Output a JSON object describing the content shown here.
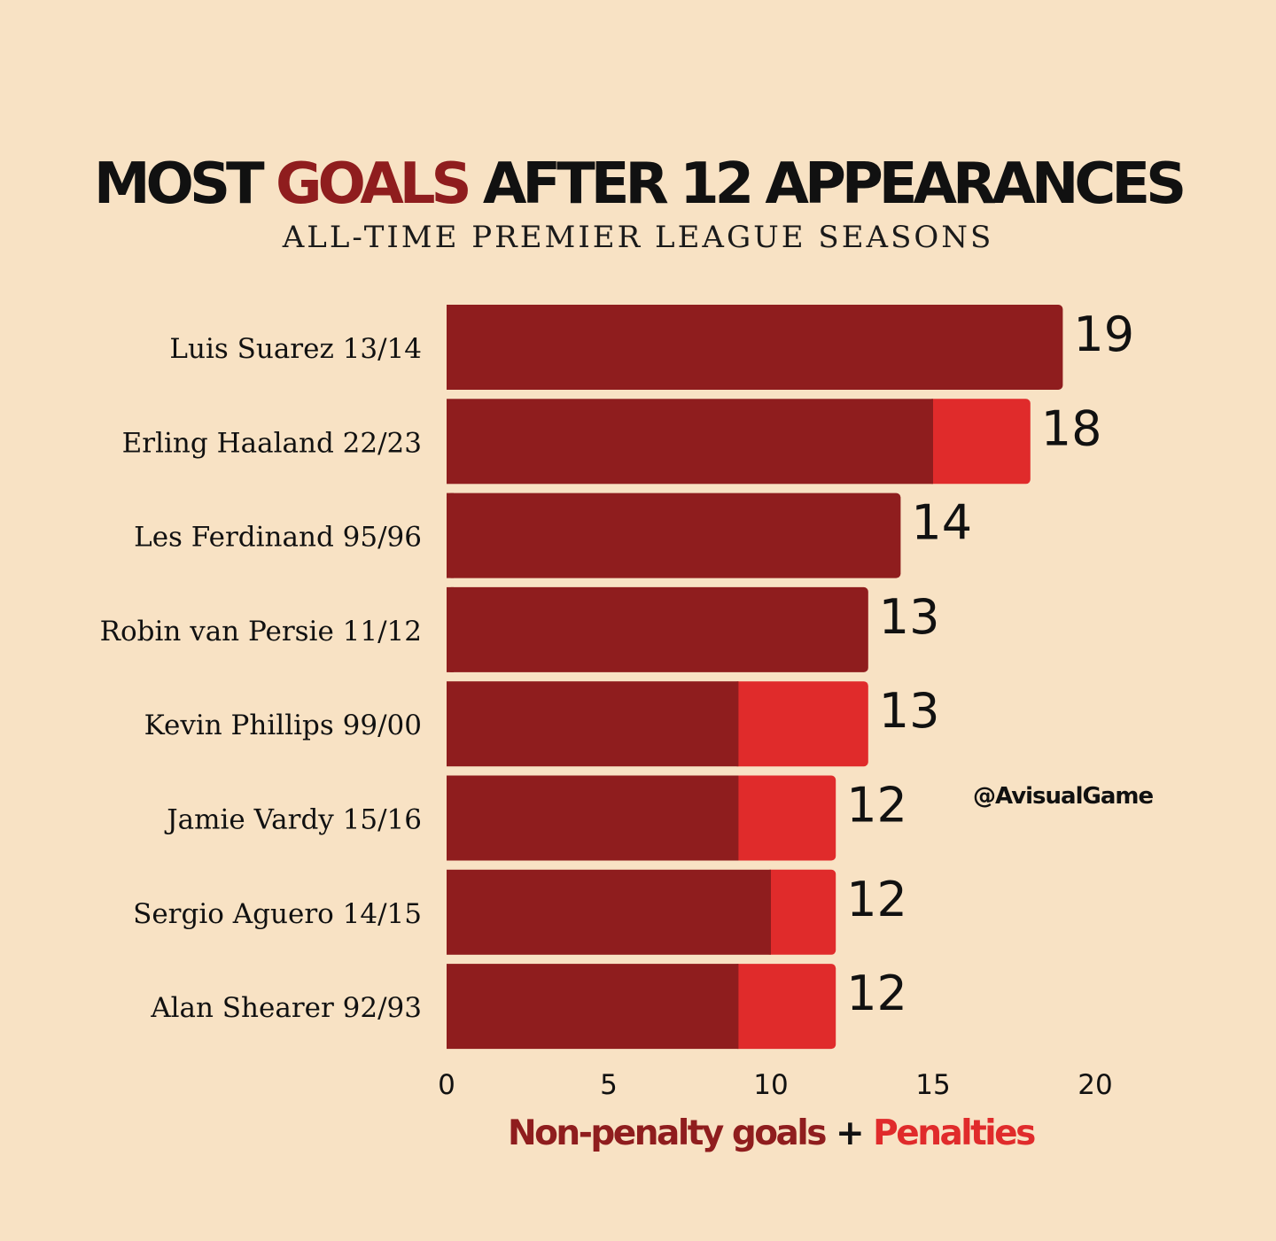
{
  "title": {
    "part1": "MOST ",
    "accent": "GOALS",
    "part2": " AFTER 12 APPEARANCES"
  },
  "subtitle": "ALL-TIME PREMIER LEAGUE SEASONS",
  "watermark": "@AvisualGame",
  "legend": {
    "non_penalty": "Non-penalty goals",
    "plus": "+",
    "penalties": "Penalties"
  },
  "colors": {
    "background": "#f8e2c4",
    "non_penalty": "#8f1d1e",
    "penalty": "#e02b2b",
    "text": "#111111"
  },
  "chart_data": {
    "type": "bar",
    "orientation": "horizontal",
    "stacked": true,
    "categories": [
      "Luis Suarez 13/14",
      "Erling Haaland 22/23",
      "Les Ferdinand 95/96",
      "Robin van Persie 11/12",
      "Kevin Phillips 99/00",
      "Jamie Vardy 15/16",
      "Sergio Aguero 14/15",
      "Alan Shearer 92/93"
    ],
    "series": [
      {
        "name": "Non-penalty goals",
        "values": [
          19,
          15,
          14,
          13,
          9,
          9,
          10,
          9
        ]
      },
      {
        "name": "Penalties",
        "values": [
          0,
          3,
          0,
          0,
          4,
          3,
          2,
          3
        ]
      }
    ],
    "totals": [
      "19",
      "18",
      "14",
      "13",
      "13",
      "12",
      "12",
      "12"
    ],
    "xticks": [
      "0",
      "5",
      "10",
      "15",
      "20"
    ],
    "xlim": [
      0,
      20
    ],
    "title": "MOST GOALS AFTER 12 APPEARANCES",
    "subtitle": "ALL-TIME PREMIER LEAGUE SEASONS",
    "xlabel": "Non-penalty goals + Penalties",
    "ylabel": "",
    "grid": false
  }
}
